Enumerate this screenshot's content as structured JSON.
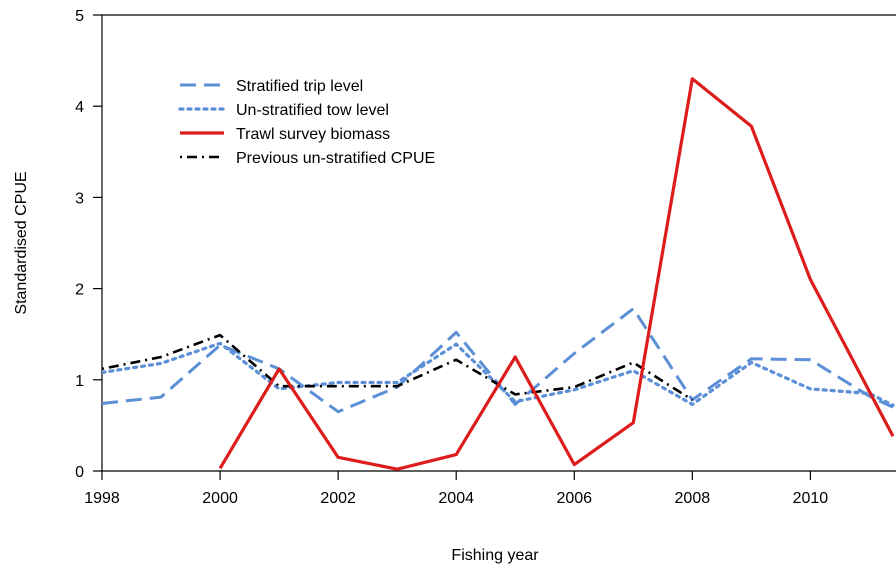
{
  "chart_data": {
    "type": "line",
    "xlabel": "Fishing year",
    "ylabel": "Standardised CPUE",
    "xlim": [
      1998,
      2011.45
    ],
    "ylim": [
      0,
      5
    ],
    "xticks": [
      1998,
      2000,
      2002,
      2004,
      2006,
      2008,
      2010
    ],
    "yticks": [
      0,
      1,
      2,
      3,
      4,
      5
    ],
    "grid": false,
    "legend_position": "top-left",
    "series": [
      {
        "name": "Stratified trip level",
        "color": "#5b8fd6",
        "style": "dashed",
        "x": [
          1998,
          1999,
          2000,
          2001,
          2002,
          2003,
          2004,
          2005,
          2006,
          2007,
          2008,
          2009,
          2010,
          2011,
          2011.4
        ],
        "y": [
          0.74,
          0.81,
          1.38,
          1.12,
          0.65,
          0.92,
          1.52,
          0.73,
          1.29,
          1.78,
          0.78,
          1.23,
          1.22,
          0.82,
          0.7
        ]
      },
      {
        "name": "Un-stratified tow level",
        "color": "#5b8fd6",
        "style": "dotted",
        "x": [
          1998,
          1999,
          2000,
          2001,
          2002,
          2003,
          2004,
          2005,
          2006,
          2007,
          2008,
          2009,
          2010,
          2011,
          2011.4
        ],
        "y": [
          1.08,
          1.18,
          1.4,
          0.9,
          0.97,
          0.97,
          1.39,
          0.76,
          0.89,
          1.1,
          0.73,
          1.19,
          0.9,
          0.85,
          0.72
        ]
      },
      {
        "name": "Trawl survey biomass",
        "color": "#dd1c1c",
        "style": "solid",
        "x": [
          2000,
          2001,
          2002,
          2003,
          2004,
          2005,
          2006,
          2007,
          2008,
          2009,
          2010,
          2011.4
        ],
        "y": [
          0.03,
          1.12,
          0.15,
          0.02,
          0.18,
          1.25,
          0.07,
          0.53,
          4.3,
          3.78,
          2.1,
          0.38
        ]
      },
      {
        "name": "Previous un-stratified CPUE",
        "color": "#000000",
        "style": "dotdash",
        "x": [
          1998,
          1999,
          2000,
          2001,
          2002,
          2003,
          2004,
          2005,
          2006,
          2007,
          2008
        ],
        "y": [
          1.12,
          1.25,
          1.49,
          0.93,
          0.93,
          0.93,
          1.22,
          0.84,
          0.92,
          1.19,
          0.78
        ]
      }
    ]
  }
}
